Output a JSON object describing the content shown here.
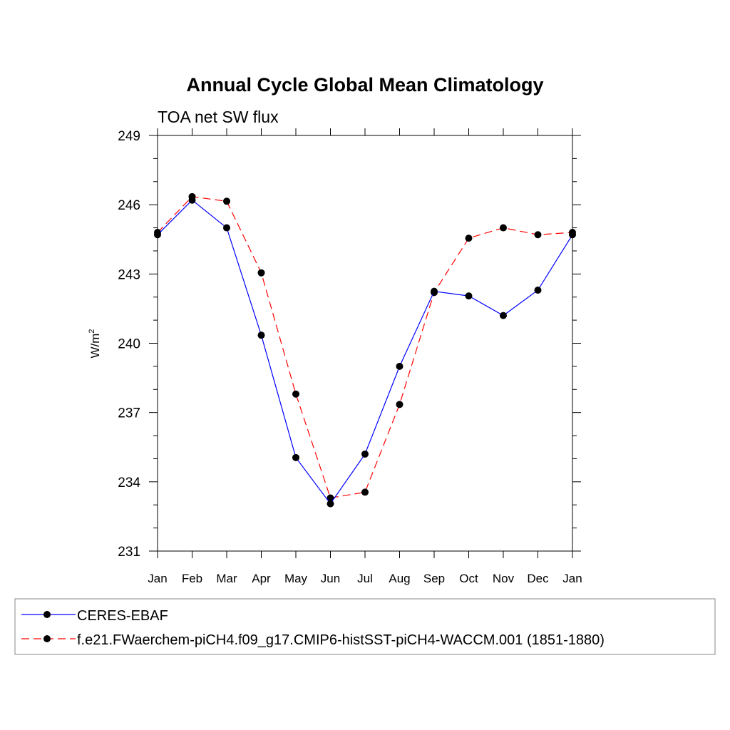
{
  "chart_data": {
    "type": "line",
    "title": "Annual Cycle Global Mean Climatology",
    "subtitle": "TOA net SW flux",
    "ylabel": "W/m",
    "ylabel_sup": "2",
    "xlabel": "",
    "categories": [
      "Jan",
      "Feb",
      "Mar",
      "Apr",
      "May",
      "Jun",
      "Jul",
      "Aug",
      "Sep",
      "Oct",
      "Nov",
      "Dec",
      "Jan"
    ],
    "ylim": [
      231,
      249
    ],
    "yticks": [
      231,
      234,
      237,
      240,
      243,
      246,
      249
    ],
    "y_minor_step": 1,
    "grid": false,
    "legend_position": "bottom",
    "series": [
      {
        "name": "CERES-EBAF",
        "color": "#0000ff",
        "dash": "solid",
        "marker": "filled-circle",
        "values": [
          244.7,
          246.2,
          245.0,
          240.35,
          235.05,
          233.05,
          235.2,
          239.0,
          242.25,
          242.05,
          241.2,
          242.3,
          244.7
        ]
      },
      {
        "name": "f.e21.FWaerchem-piCH4.f09_g17.CMIP6-histSST-piCH4-WACCM.001 (1851-1880)",
        "color": "#ff0000",
        "dash": "dashed",
        "marker": "filled-circle",
        "values": [
          244.8,
          246.35,
          246.15,
          243.05,
          237.8,
          233.3,
          233.55,
          237.35,
          242.2,
          244.55,
          245.0,
          244.7,
          244.8
        ]
      }
    ]
  }
}
